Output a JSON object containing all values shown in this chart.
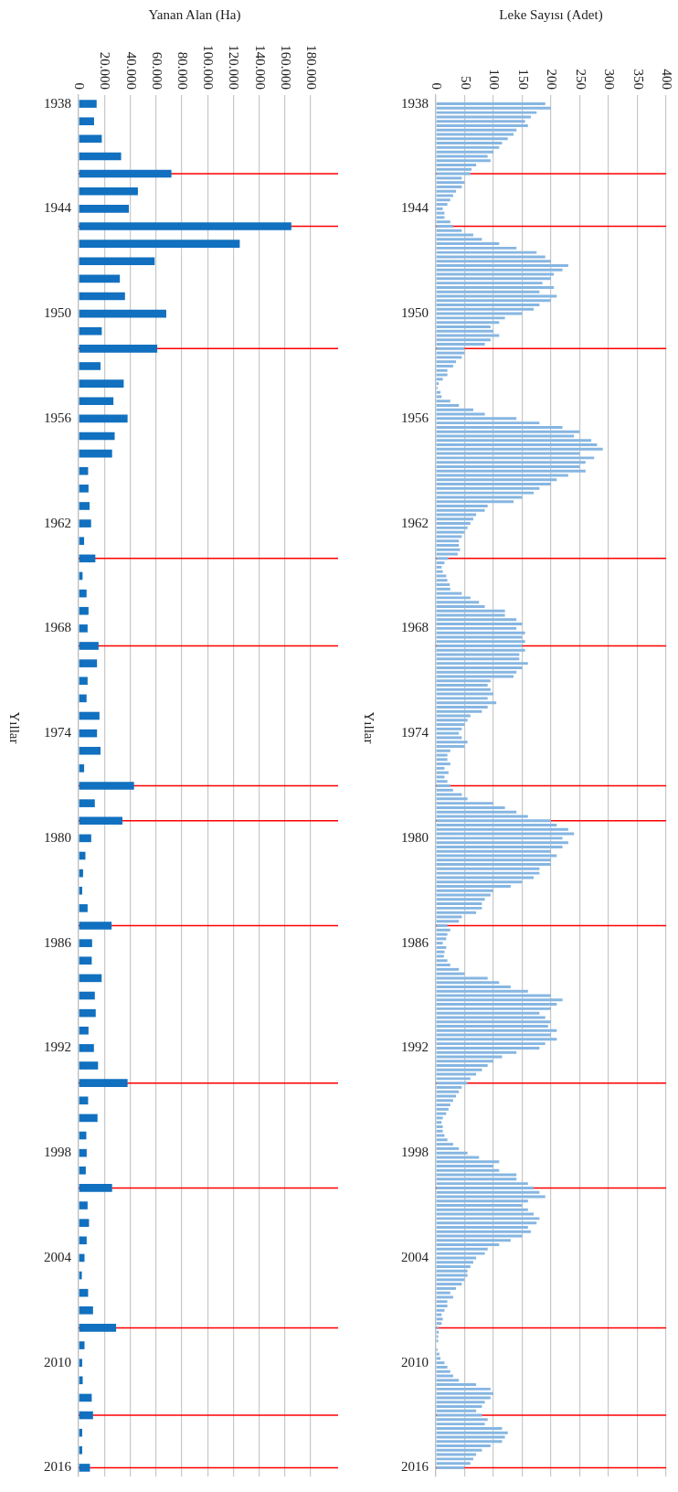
{
  "chart_data": [
    {
      "type": "bar",
      "orientation": "horizontal",
      "xlabel": "Yanan Alan (Ha)",
      "ylabel": "Yıllar",
      "x": [
        1938,
        1939,
        1940,
        1941,
        1942,
        1943,
        1944,
        1945,
        1946,
        1947,
        1948,
        1949,
        1950,
        1951,
        1952,
        1953,
        1954,
        1955,
        1956,
        1957,
        1958,
        1959,
        1960,
        1961,
        1962,
        1963,
        1964,
        1965,
        1966,
        1967,
        1968,
        1969,
        1970,
        1971,
        1972,
        1973,
        1974,
        1975,
        1976,
        1977,
        1978,
        1979,
        1980,
        1981,
        1982,
        1983,
        1984,
        1985,
        1986,
        1987,
        1988,
        1989,
        1990,
        1991,
        1992,
        1993,
        1994,
        1995,
        1996,
        1997,
        1998,
        1999,
        2000,
        2001,
        2002,
        2003,
        2004,
        2005,
        2006,
        2007,
        2008,
        2009,
        2010,
        2011,
        2012,
        2013,
        2014,
        2015,
        2016
      ],
      "values": [
        14000,
        12000,
        18000,
        33000,
        72000,
        46000,
        39000,
        165000,
        125000,
        59000,
        32000,
        36000,
        68000,
        18000,
        61000,
        17000,
        35000,
        27000,
        38000,
        28000,
        26000,
        7400,
        7700,
        8500,
        9700,
        4300,
        13000,
        3100,
        6200,
        7700,
        7000,
        15500,
        14300,
        7000,
        6200,
        16200,
        14300,
        17000,
        4300,
        43000,
        12600,
        34000,
        9800,
        5300,
        3500,
        2800,
        7000,
        25600,
        10500,
        10200,
        17900,
        12600,
        13300,
        7700,
        11900,
        15100,
        38000,
        7400,
        14700,
        6000,
        6300,
        5600,
        26000,
        7000,
        8100,
        6300,
        4600,
        2500,
        7400,
        11200,
        29100,
        4600,
        2800,
        3200,
        10200,
        11200,
        2800,
        2800,
        8800
      ],
      "color": "#1170bf",
      "xlim": [
        0,
        180000
      ],
      "xticks": [
        0,
        {
          "value": 20000,
          "label": "20.000"
        },
        {
          "value": 40000,
          "label": "40.000"
        },
        {
          "value": 60000,
          "label": "60.000"
        },
        {
          "value": 80000,
          "label": "80.000"
        },
        {
          "value": 100000,
          "label": "100.000"
        },
        {
          "value": 120000,
          "label": "120.000"
        },
        {
          "value": 140000,
          "label": "140.000"
        },
        {
          "value": 160000,
          "label": "160.000"
        },
        {
          "value": 180000,
          "label": "180.000"
        }
      ],
      "ylim": [
        2016.5,
        1937.5
      ],
      "yticks": [
        1938,
        1944,
        1950,
        1956,
        1962,
        1968,
        1974,
        1980,
        1986,
        1992,
        1998,
        2004,
        2010,
        2016
      ],
      "grid": "x",
      "ref_lines": [
        {
          "axis": "y",
          "value": 1942,
          "color": "#ff0000"
        },
        {
          "axis": "y",
          "value": 1945,
          "color": "#ff0000"
        },
        {
          "axis": "y",
          "value": 1952,
          "color": "#ff0000"
        },
        {
          "axis": "y",
          "value": 1964,
          "color": "#ff0000"
        },
        {
          "axis": "y",
          "value": 1969,
          "color": "#ff0000"
        },
        {
          "axis": "y",
          "value": 1977,
          "color": "#ff0000"
        },
        {
          "axis": "y",
          "value": 1979,
          "color": "#ff0000"
        },
        {
          "axis": "y",
          "value": 1985,
          "color": "#ff0000"
        },
        {
          "axis": "y",
          "value": 1994,
          "color": "#ff0000"
        },
        {
          "axis": "y",
          "value": 2000,
          "color": "#ff0000"
        },
        {
          "axis": "y",
          "value": 2008,
          "color": "#ff0000"
        },
        {
          "axis": "y",
          "value": 2013,
          "color": "#ff0000"
        },
        {
          "axis": "y",
          "value": 2016,
          "color": "#ff0000"
        }
      ]
    },
    {
      "type": "bar",
      "orientation": "horizontal",
      "xlabel": "Leke Sayısı (Adet)",
      "ylabel": "Yıllar",
      "x": [
        1938,
        1938.25,
        1938.5,
        1938.75,
        1939,
        1939.25,
        1939.5,
        1939.75,
        1940,
        1940.25,
        1940.5,
        1940.75,
        1941,
        1941.25,
        1941.5,
        1941.75,
        1942,
        1942.25,
        1942.5,
        1942.75,
        1943,
        1943.25,
        1943.5,
        1943.75,
        1944,
        1944.25,
        1944.5,
        1944.75,
        1945,
        1945.25,
        1945.5,
        1945.75,
        1946,
        1946.25,
        1946.5,
        1946.75,
        1947,
        1947.25,
        1947.5,
        1947.75,
        1948,
        1948.25,
        1948.5,
        1948.75,
        1949,
        1949.25,
        1949.5,
        1949.75,
        1950,
        1950.25,
        1950.5,
        1950.75,
        1951,
        1951.25,
        1951.5,
        1951.75,
        1952,
        1952.25,
        1952.5,
        1952.75,
        1953,
        1953.25,
        1953.5,
        1953.75,
        1954,
        1954.25,
        1954.5,
        1954.75,
        1955,
        1955.25,
        1955.5,
        1955.75,
        1956,
        1956.25,
        1956.5,
        1956.75,
        1957,
        1957.25,
        1957.5,
        1957.75,
        1958,
        1958.25,
        1958.5,
        1958.75,
        1959,
        1959.25,
        1959.5,
        1959.75,
        1960,
        1960.25,
        1960.5,
        1960.75,
        1961,
        1961.25,
        1961.5,
        1961.75,
        1962,
        1962.25,
        1962.5,
        1962.75,
        1963,
        1963.25,
        1963.5,
        1963.75,
        1964,
        1964.25,
        1964.5,
        1964.75,
        1965,
        1965.25,
        1965.5,
        1965.75,
        1966,
        1966.25,
        1966.5,
        1966.75,
        1967,
        1967.25,
        1967.5,
        1967.75,
        1968,
        1968.25,
        1968.5,
        1968.75,
        1969,
        1969.25,
        1969.5,
        1969.75,
        1970,
        1970.25,
        1970.5,
        1970.75,
        1971,
        1971.25,
        1971.5,
        1971.75,
        1972,
        1972.25,
        1972.5,
        1972.75,
        1973,
        1973.25,
        1973.5,
        1973.75,
        1974,
        1974.25,
        1974.5,
        1974.75,
        1975,
        1975.25,
        1975.5,
        1975.75,
        1976,
        1976.25,
        1976.5,
        1976.75,
        1977,
        1977.25,
        1977.5,
        1977.75,
        1978,
        1978.25,
        1978.5,
        1978.75,
        1979,
        1979.25,
        1979.5,
        1979.75,
        1980,
        1980.25,
        1980.5,
        1980.75,
        1981,
        1981.25,
        1981.5,
        1981.75,
        1982,
        1982.25,
        1982.5,
        1982.75,
        1983,
        1983.25,
        1983.5,
        1983.75,
        1984,
        1984.25,
        1984.5,
        1984.75,
        1985,
        1985.25,
        1985.5,
        1985.75,
        1986,
        1986.25,
        1986.5,
        1986.75,
        1987,
        1987.25,
        1987.5,
        1987.75,
        1988,
        1988.25,
        1988.5,
        1988.75,
        1989,
        1989.25,
        1989.5,
        1989.75,
        1990,
        1990.25,
        1990.5,
        1990.75,
        1991,
        1991.25,
        1991.5,
        1991.75,
        1992,
        1992.25,
        1992.5,
        1992.75,
        1993,
        1993.25,
        1993.5,
        1993.75,
        1994,
        1994.25,
        1994.5,
        1994.75,
        1995,
        1995.25,
        1995.5,
        1995.75,
        1996,
        1996.25,
        1996.5,
        1996.75,
        1997,
        1997.25,
        1997.5,
        1997.75,
        1998,
        1998.25,
        1998.5,
        1998.75,
        1999,
        1999.25,
        1999.5,
        1999.75,
        2000,
        2000.25,
        2000.5,
        2000.75,
        2001,
        2001.25,
        2001.5,
        2001.75,
        2002,
        2002.25,
        2002.5,
        2002.75,
        2003,
        2003.25,
        2003.5,
        2003.75,
        2004,
        2004.25,
        2004.5,
        2004.75,
        2005,
        2005.25,
        2005.5,
        2005.75,
        2006,
        2006.25,
        2006.5,
        2006.75,
        2007,
        2007.25,
        2007.5,
        2007.75,
        2008,
        2008.25,
        2008.5,
        2008.75,
        2009,
        2009.25,
        2009.5,
        2009.75,
        2010,
        2010.25,
        2010.5,
        2010.75,
        2011,
        2011.25,
        2011.5,
        2011.75,
        2012,
        2012.25,
        2012.5,
        2012.75,
        2013,
        2013.25,
        2013.5,
        2013.75,
        2014,
        2014.25,
        2014.5,
        2014.75,
        2015,
        2015.25,
        2015.5,
        2015.75,
        2016
      ],
      "values": [
        190,
        200,
        175,
        165,
        155,
        160,
        140,
        135,
        125,
        115,
        110,
        100,
        90,
        95,
        70,
        62,
        60,
        45,
        50,
        45,
        35,
        30,
        25,
        20,
        12,
        15,
        15,
        25,
        30,
        45,
        65,
        80,
        110,
        140,
        175,
        190,
        200,
        230,
        220,
        205,
        200,
        185,
        205,
        180,
        210,
        200,
        180,
        170,
        150,
        120,
        110,
        95,
        100,
        110,
        95,
        85,
        50,
        50,
        45,
        35,
        30,
        20,
        20,
        12,
        5,
        3,
        8,
        10,
        25,
        40,
        65,
        85,
        140,
        180,
        220,
        250,
        240,
        270,
        280,
        290,
        250,
        275,
        260,
        250,
        260,
        230,
        210,
        200,
        180,
        170,
        150,
        135,
        90,
        85,
        70,
        65,
        60,
        55,
        50,
        45,
        40,
        40,
        42,
        38,
        22,
        15,
        10,
        12,
        18,
        20,
        24,
        25,
        45,
        60,
        75,
        85,
        120,
        120,
        140,
        150,
        140,
        155,
        150,
        155,
        150,
        155,
        145,
        145,
        160,
        150,
        140,
        135,
        95,
        90,
        95,
        100,
        90,
        105,
        90,
        80,
        60,
        55,
        50,
        45,
        40,
        45,
        55,
        50,
        25,
        20,
        20,
        25,
        15,
        22,
        15,
        20,
        25,
        30,
        45,
        55,
        100,
        120,
        140,
        160,
        200,
        210,
        230,
        240,
        220,
        230,
        220,
        200,
        210,
        200,
        200,
        180,
        180,
        170,
        150,
        130,
        100,
        95,
        85,
        80,
        80,
        70,
        45,
        40,
        20,
        25,
        20,
        18,
        12,
        18,
        15,
        14,
        20,
        25,
        40,
        50,
        90,
        110,
        130,
        160,
        200,
        220,
        210,
        200,
        180,
        190,
        200,
        195,
        210,
        200,
        210,
        190,
        180,
        140,
        115,
        100,
        90,
        80,
        70,
        60,
        55,
        45,
        40,
        35,
        30,
        25,
        22,
        18,
        12,
        10,
        12,
        12,
        15,
        20,
        30,
        40,
        55,
        75,
        110,
        100,
        110,
        140,
        140,
        160,
        170,
        180,
        190,
        160,
        150,
        160,
        170,
        180,
        175,
        160,
        165,
        150,
        130,
        110,
        90,
        85,
        70,
        65,
        60,
        55,
        55,
        50,
        45,
        35,
        25,
        30,
        20,
        20,
        15,
        10,
        12,
        10,
        5,
        5,
        4,
        4,
        null,
        3,
        6,
        8,
        15,
        20,
        25,
        30,
        40,
        70,
        95,
        100,
        95,
        85,
        80,
        70,
        80,
        90,
        85,
        115,
        125,
        120,
        115,
        95,
        80,
        70,
        65,
        60,
        50
      ],
      "color": "#86b6e2",
      "xlim": [
        0,
        400
      ],
      "xticks": [
        0,
        50,
        100,
        150,
        200,
        250,
        300,
        350,
        400
      ],
      "ylim": [
        2016.5,
        1937.5
      ],
      "yticks": [
        1938,
        1944,
        1950,
        1956,
        1962,
        1968,
        1974,
        1980,
        1986,
        1992,
        1998,
        2004,
        2010,
        2016
      ],
      "grid": "x",
      "ref_lines": [
        {
          "axis": "y",
          "value": 1942,
          "color": "#ff0000"
        },
        {
          "axis": "y",
          "value": 1945,
          "color": "#ff0000"
        },
        {
          "axis": "y",
          "value": 1952,
          "color": "#ff0000"
        },
        {
          "axis": "y",
          "value": 1964,
          "color": "#ff0000"
        },
        {
          "axis": "y",
          "value": 1969,
          "color": "#ff0000"
        },
        {
          "axis": "y",
          "value": 1977,
          "color": "#ff0000"
        },
        {
          "axis": "y",
          "value": 1979,
          "color": "#ff0000"
        },
        {
          "axis": "y",
          "value": 1985,
          "color": "#ff0000"
        },
        {
          "axis": "y",
          "value": 1994,
          "color": "#ff0000"
        },
        {
          "axis": "y",
          "value": 2000,
          "color": "#ff0000"
        },
        {
          "axis": "y",
          "value": 2008,
          "color": "#ff0000"
        },
        {
          "axis": "y",
          "value": 2013,
          "color": "#ff0000"
        },
        {
          "axis": "y",
          "value": 2016,
          "color": "#ff0000"
        }
      ]
    }
  ]
}
